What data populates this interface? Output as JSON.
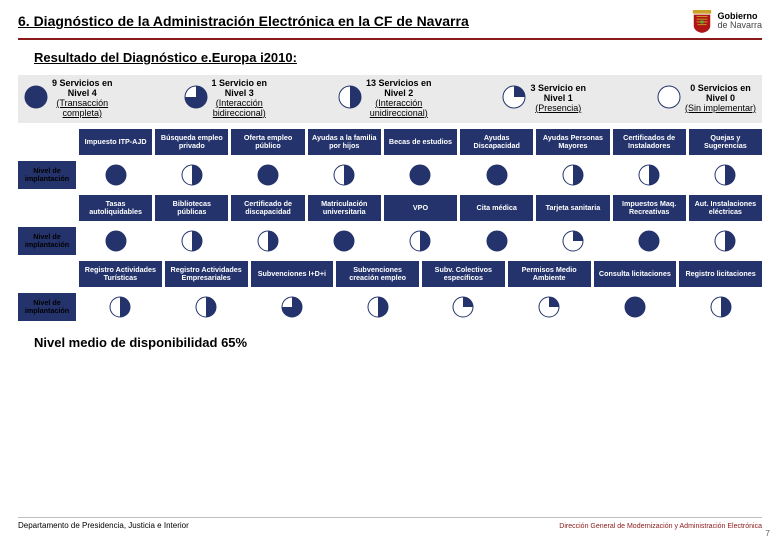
{
  "colors": {
    "navy": "#24336b",
    "red_line": "#8a1a1a",
    "pie_fill": "#24336b",
    "pie_empty": "#ffffff",
    "pie_stroke": "#24336b",
    "legend_bg": "#eaeaea",
    "footer_red": "#8a1a1a"
  },
  "header": {
    "title": "6. Diagnóstico de la Administración Electrónica en la CF de Navarra",
    "logo_top": "Gobierno",
    "logo_bottom": "de Navarra"
  },
  "subtitle": "Resultado del Diagnóstico e.Europa i2010:",
  "legend": [
    {
      "fraction": 1.0,
      "line1": "9 Servicios en",
      "line2": "Nivel 4",
      "line3": "(Transacción",
      "line4": "completa)"
    },
    {
      "fraction": 0.75,
      "line1": "1 Servicio en",
      "line2": "Nivel 3",
      "line3": "(Interacción",
      "line4": "bidireccional)"
    },
    {
      "fraction": 0.5,
      "line1": "13 Servicios en",
      "line2": "Nivel 2",
      "line3": "(Interacción",
      "line4": "unidireccional)"
    },
    {
      "fraction": 0.25,
      "line1": "3 Servicio en",
      "line2": "Nivel 1",
      "line3": "(Presencia)"
    },
    {
      "fraction": 0.0,
      "line1": "0 Servicios en",
      "line2": "Nivel 0",
      "line3": "(Sin implementar)"
    }
  ],
  "matrix": {
    "side_label": "Nivel de implantación",
    "blocks": [
      {
        "headers": [
          "Impuesto ITP-AJD",
          "Búsqueda empleo privado",
          "Oferta empleo público",
          "Ayudas a la familia por hijos",
          "Becas de estudios",
          "Ayudas Discapacidad",
          "Ayudas Personas Mayores",
          "Certificados de Instaladores",
          "Quejas y Sugerencias"
        ],
        "fractions": [
          1.0,
          0.5,
          1.0,
          0.5,
          1.0,
          1.0,
          0.5,
          0.5,
          0.5
        ]
      },
      {
        "headers": [
          "Tasas autoliquidables",
          "Bibliotecas públicas",
          "Certificado de discapacidad",
          "Matriculación universitaria",
          "VPO",
          "Cita médica",
          "Tarjeta sanitaria",
          "Impuestos Maq. Recreativas",
          "Aut. Instalaciones eléctricas"
        ],
        "fractions": [
          1.0,
          0.5,
          0.5,
          1.0,
          0.5,
          1.0,
          0.25,
          1.0,
          0.5
        ]
      },
      {
        "headers": [
          "Registro Actividades Turísticas",
          "Registro Actividades Empresariales",
          "Subvenciones I+D+i",
          "Subvenciones creación empleo",
          "Subv. Colectivos específicos",
          "Permisos Medio Ambiente",
          "Consulta licitaciones",
          "Registro licitaciones"
        ],
        "fractions": [
          0.5,
          0.5,
          0.75,
          0.5,
          0.25,
          0.25,
          1.0,
          0.5
        ]
      }
    ]
  },
  "availability": "Nivel medio de disponibilidad 65%",
  "footer": {
    "left": "Departamento de Presidencia, Justicia e Interior",
    "right": "Dirección General de Modernización y Administración Electrónica",
    "page": "7"
  },
  "pie_style": {
    "radius": 10,
    "legend_radius": 11
  }
}
